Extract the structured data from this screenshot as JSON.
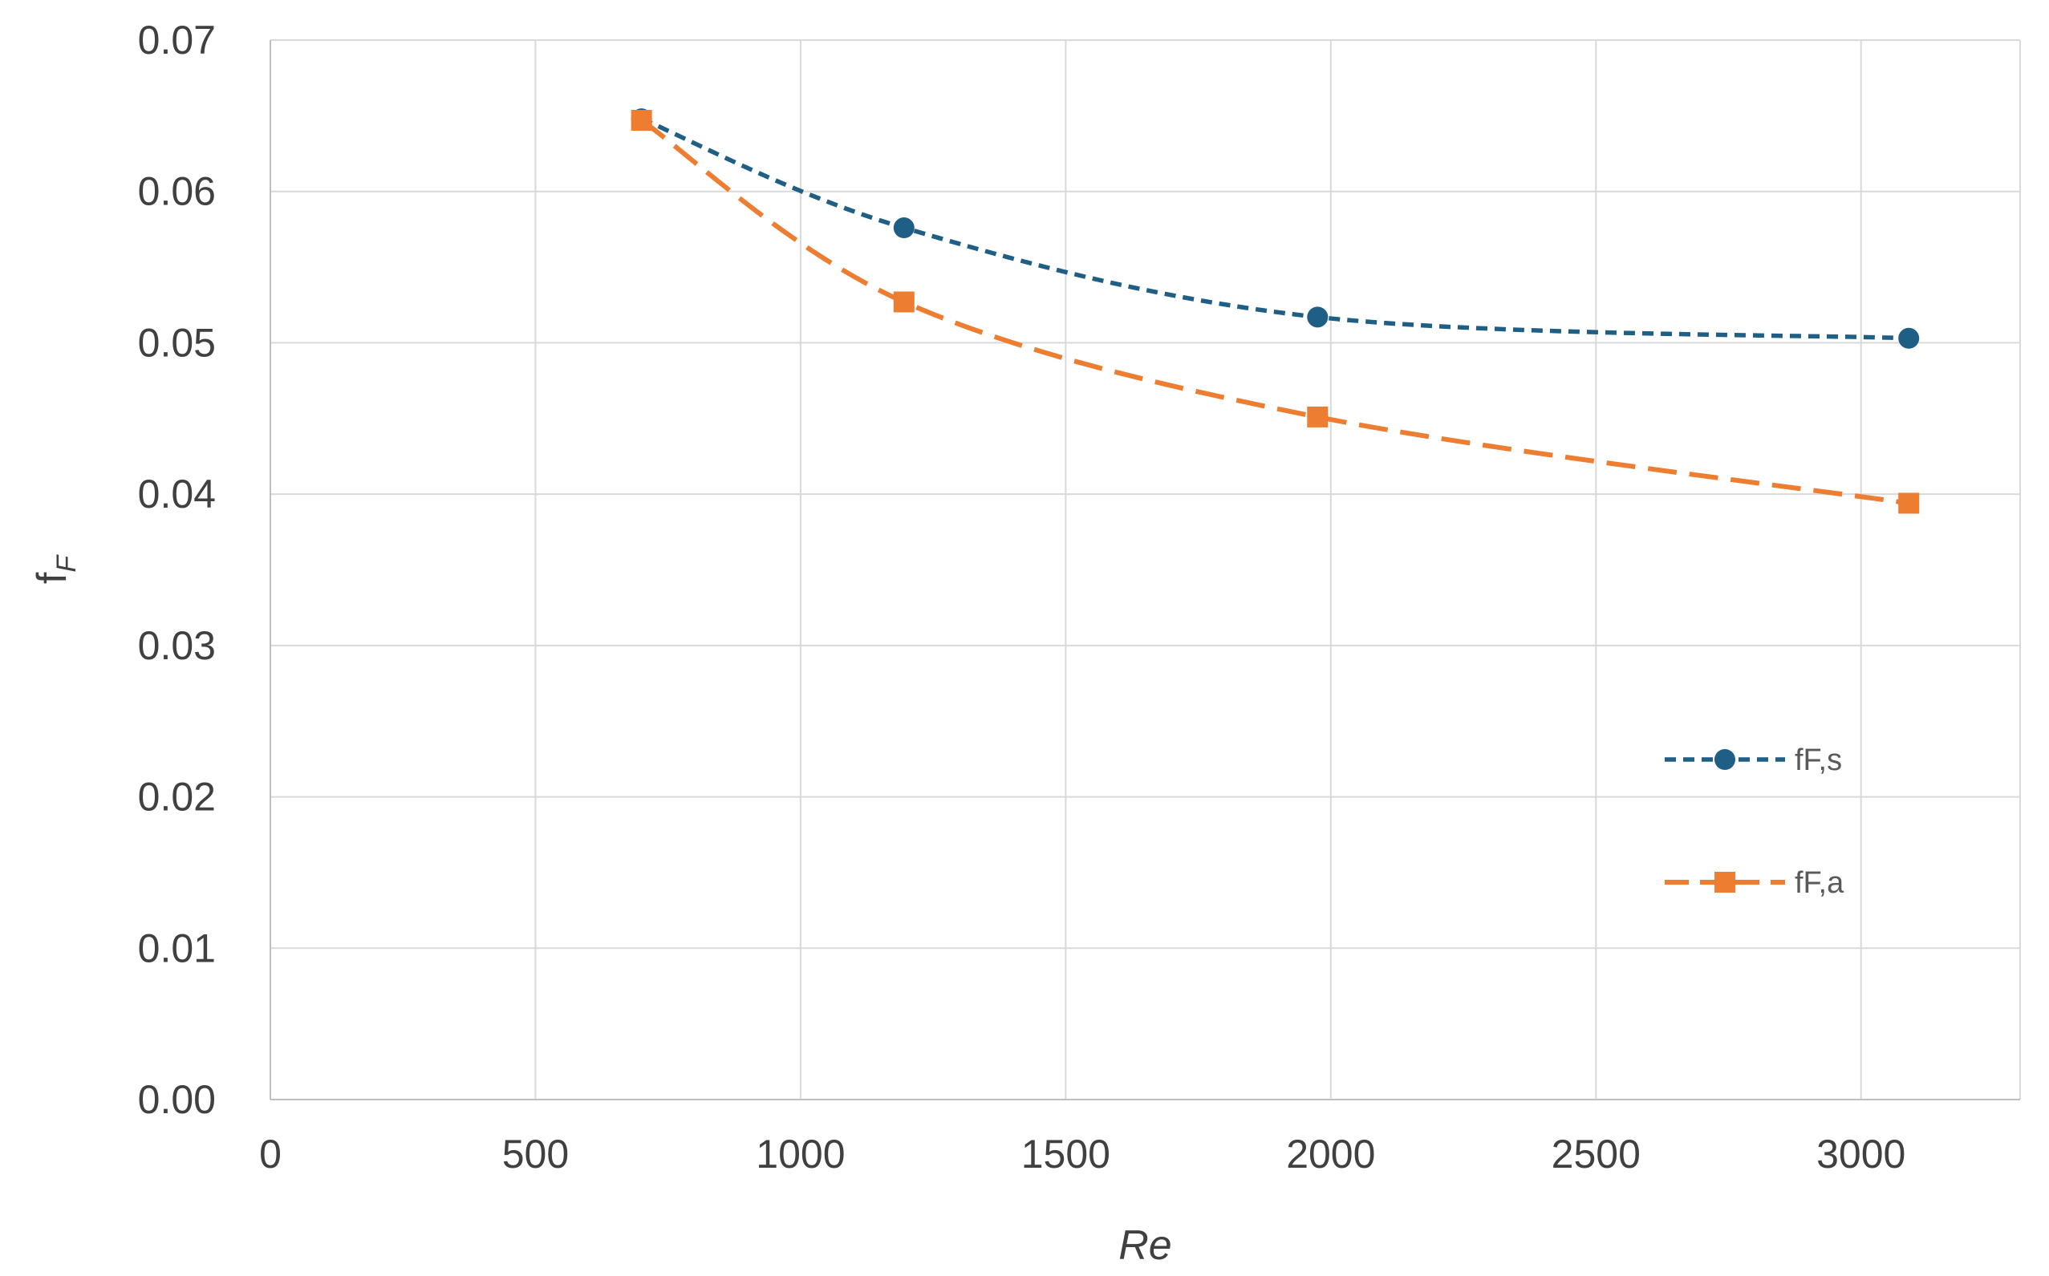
{
  "chart_data": {
    "type": "line",
    "xlabel": "Re",
    "ylabel": {
      "main": "f",
      "sub": "F"
    },
    "xlim": [
      0,
      3300
    ],
    "ylim": [
      0,
      0.07
    ],
    "x_ticks": [
      0,
      500,
      1000,
      1500,
      2000,
      2500,
      3000
    ],
    "x_tick_labels": [
      "0",
      "500",
      "1000",
      "1500",
      "2000",
      "2500",
      "3000"
    ],
    "y_ticks": [
      0,
      0.01,
      0.02,
      0.03,
      0.04,
      0.05,
      0.06,
      0.07
    ],
    "y_tick_labels": [
      "0.00",
      "0.01",
      "0.02",
      "0.03",
      "0.04",
      "0.05",
      "0.06",
      "0.07"
    ],
    "grid": true,
    "legend_position": "right",
    "series": [
      {
        "name": "fF,s",
        "marker": "circle",
        "line_style": "short-dash",
        "color": "#1f5f85",
        "x": [
          700,
          1195,
          1975,
          3090
        ],
        "y": [
          0.0648,
          0.0576,
          0.0517,
          0.0503
        ]
      },
      {
        "name": "fF,a",
        "marker": "square",
        "line_style": "long-dash",
        "color": "#ed7d31",
        "x": [
          700,
          1195,
          1975,
          3090
        ],
        "y": [
          0.0647,
          0.0527,
          0.0451,
          0.0394
        ]
      }
    ]
  }
}
